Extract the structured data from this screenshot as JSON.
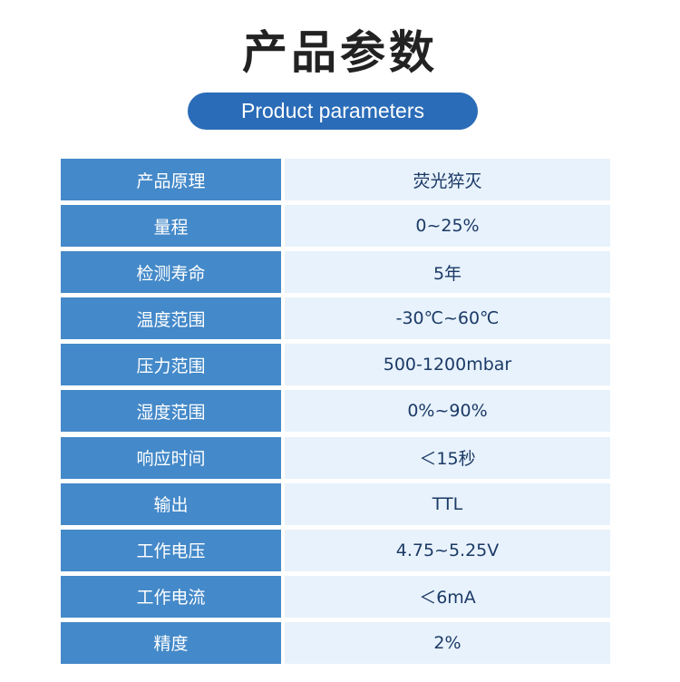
{
  "title": "产品参数",
  "subtitle": "Product parameters",
  "rows": [
    {
      "k": "产品原理",
      "v": "荧光猝灭"
    },
    {
      "k": "量程",
      "v": "0~25%"
    },
    {
      "k": "检测寿命",
      "v": "5年"
    },
    {
      "k": "温度范围",
      "v": "-30℃~60℃"
    },
    {
      "k": "压力范围",
      "v": "500-1200mbar"
    },
    {
      "k": "湿度范围",
      "v": "0%~90%"
    },
    {
      "k": "响应时间",
      "v": "＜15秒"
    },
    {
      "k": "输出",
      "v": "TTL"
    },
    {
      "k": "工作电压",
      "v": "4.75~5.25V"
    },
    {
      "k": "工作电流",
      "v": "＜6mA"
    },
    {
      "k": "精度",
      "v": "2%"
    }
  ]
}
